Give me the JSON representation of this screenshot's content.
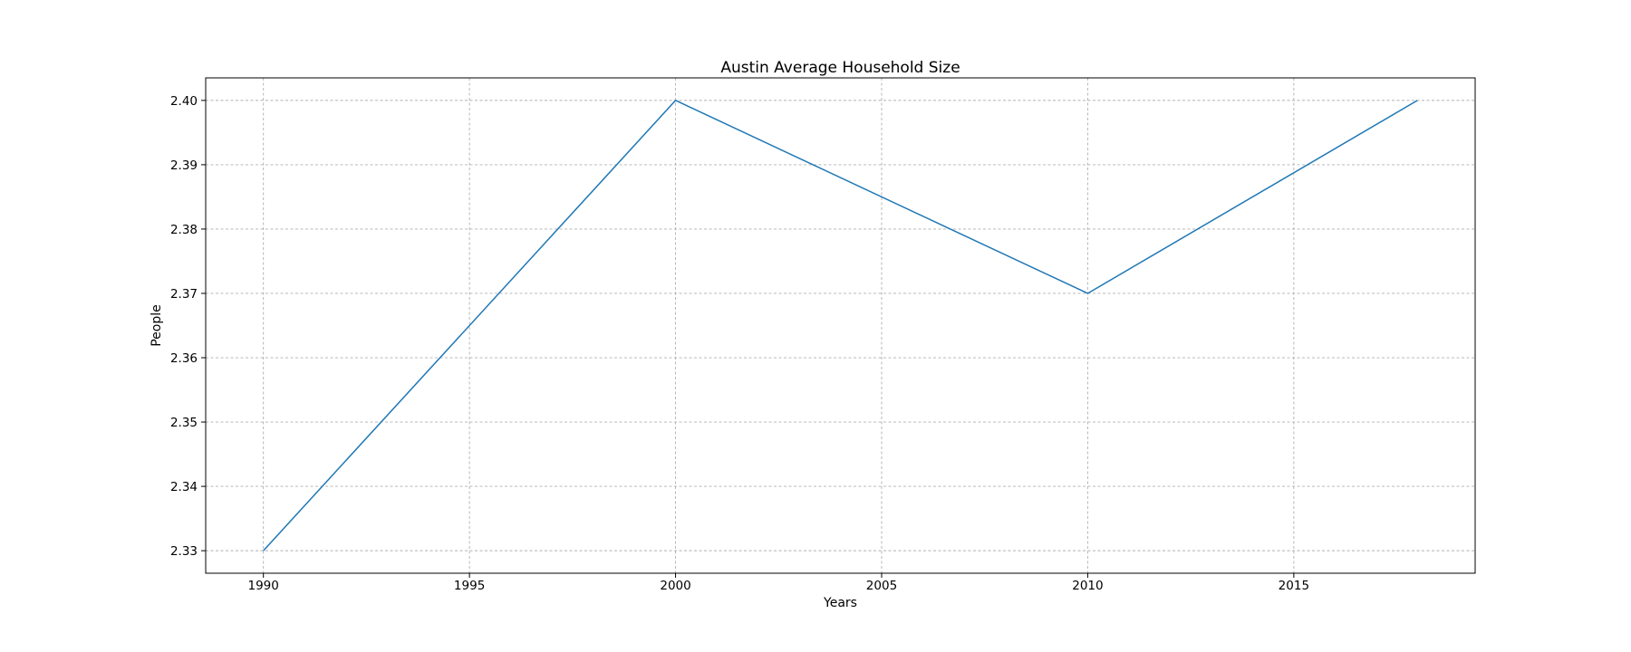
{
  "chart_data": {
    "type": "line",
    "title": "Austin Average Household Size",
    "xlabel": "Years",
    "ylabel": "People",
    "x": [
      1990,
      2000,
      2010,
      2018
    ],
    "series": [
      {
        "values": [
          2.33,
          2.4,
          2.37,
          2.4
        ],
        "color": "#1f77b4"
      }
    ],
    "xlim": [
      1988.6,
      2019.4
    ],
    "ylim": [
      2.3265,
      2.4035
    ],
    "xticks": [
      1990,
      1995,
      2000,
      2005,
      2010,
      2015
    ],
    "yticks": [
      2.33,
      2.34,
      2.35,
      2.36,
      2.37,
      2.38,
      2.39,
      2.4
    ],
    "ytick_labels": [
      "2.33",
      "2.34",
      "2.35",
      "2.36",
      "2.37",
      "2.38",
      "2.39",
      "2.40"
    ],
    "grid": true
  }
}
